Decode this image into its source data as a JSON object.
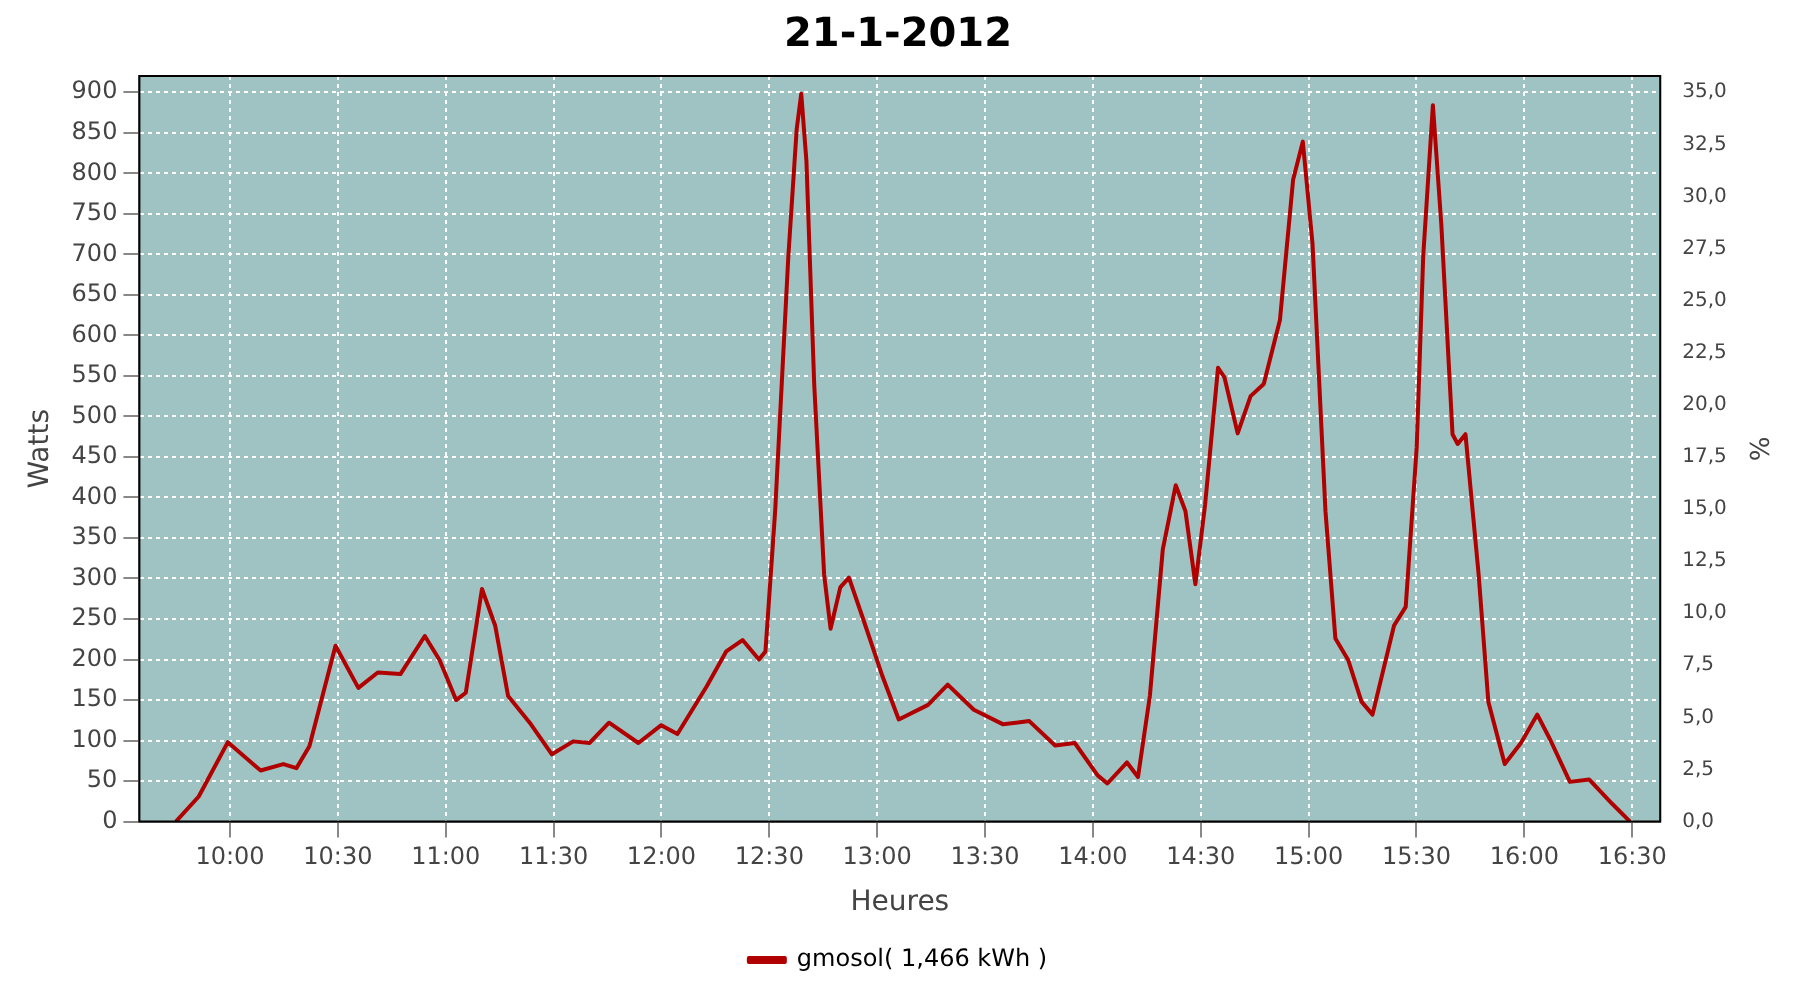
{
  "chart_data": {
    "type": "line",
    "title": "21-1-2012",
    "xlabel": "Heures",
    "ylabel": "Watts",
    "y2label": "%",
    "x": [
      9.749,
      9.855,
      9.99,
      10.142,
      10.247,
      10.308,
      10.368,
      10.489,
      10.595,
      10.685,
      10.79,
      10.903,
      10.972,
      11.048,
      11.093,
      11.168,
      11.229,
      11.289,
      11.395,
      11.492,
      11.591,
      11.667,
      11.757,
      11.893,
      11.999,
      12.074,
      12.21,
      12.3,
      12.376,
      12.452,
      12.482,
      12.527,
      12.588,
      12.627,
      12.648,
      12.672,
      12.708,
      12.754,
      12.784,
      12.829,
      12.869,
      12.935,
      13.025,
      13.1,
      13.236,
      13.327,
      13.448,
      13.584,
      13.705,
      13.825,
      13.916,
      14.022,
      14.067,
      14.158,
      14.209,
      14.264,
      14.324,
      14.384,
      14.429,
      14.475,
      14.52,
      14.58,
      14.61,
      14.671,
      14.731,
      14.792,
      14.867,
      14.928,
      14.973,
      15.018,
      15.078,
      15.124,
      15.184,
      15.245,
      15.296,
      15.396,
      15.45,
      15.501,
      15.531,
      15.576,
      15.615,
      15.667,
      15.691,
      15.727,
      15.788,
      15.833,
      15.909,
      15.984,
      16.06,
      16.12,
      16.211,
      16.3,
      16.407,
      16.49
    ],
    "series": [
      {
        "name": "gmosol( 1,466 kWh )",
        "color": "#b00000",
        "values": [
          0,
          31,
          98,
          63,
          71,
          66,
          93,
          217,
          165,
          184,
          182,
          229,
          199,
          150,
          159,
          287,
          242,
          155,
          120,
          83,
          99,
          97,
          122,
          97,
          119,
          108,
          167,
          210,
          224,
          200,
          210,
          383,
          697,
          855,
          898,
          815,
          540,
          305,
          238,
          289,
          301,
          250,
          179,
          126,
          144,
          169,
          138,
          120,
          124,
          94,
          97,
          57,
          47,
          73,
          55,
          155,
          336,
          415,
          383,
          293,
          391,
          560,
          548,
          479,
          525,
          540,
          619,
          792,
          839,
          713,
          383,
          226,
          199,
          148,
          132,
          242,
          265,
          462,
          697,
          884,
          737,
          478,
          466,
          478,
          305,
          148,
          71,
          97,
          132,
          101,
          49,
          52,
          22,
          0
        ]
      }
    ],
    "xlim": [
      9.58,
      16.63
    ],
    "xticks": [
      {
        "value": 10,
        "label": "10:00"
      },
      {
        "value": 10.5,
        "label": "10:30"
      },
      {
        "value": 11,
        "label": "11:00"
      },
      {
        "value": 11.5,
        "label": "11:30"
      },
      {
        "value": 12,
        "label": "12:00"
      },
      {
        "value": 12.5,
        "label": "12:30"
      },
      {
        "value": 13,
        "label": "13:00"
      },
      {
        "value": 13.5,
        "label": "13:30"
      },
      {
        "value": 14,
        "label": "14:00"
      },
      {
        "value": 14.5,
        "label": "14:30"
      },
      {
        "value": 15,
        "label": "15:00"
      },
      {
        "value": 15.5,
        "label": "15:30"
      },
      {
        "value": 16,
        "label": "16:00"
      },
      {
        "value": 16.5,
        "label": "16:30"
      }
    ],
    "ylim": [
      0,
      920
    ],
    "yticks": [
      0,
      50,
      100,
      150,
      200,
      250,
      300,
      350,
      400,
      450,
      500,
      550,
      600,
      650,
      700,
      750,
      800,
      850,
      900
    ],
    "y2lim": [
      0,
      35.78
    ],
    "y2ticks": [
      {
        "value": 0,
        "label": "0,0"
      },
      {
        "value": 2.5,
        "label": "2,5"
      },
      {
        "value": 5,
        "label": "5,0"
      },
      {
        "value": 7.5,
        "label": "7,5"
      },
      {
        "value": 10,
        "label": "10,0"
      },
      {
        "value": 12.5,
        "label": "12,5"
      },
      {
        "value": 15,
        "label": "15,0"
      },
      {
        "value": 17.5,
        "label": "17,5"
      },
      {
        "value": 20,
        "label": "20,0"
      },
      {
        "value": 22.5,
        "label": "22,5"
      },
      {
        "value": 25,
        "label": "25,0"
      },
      {
        "value": 27.5,
        "label": "27,5"
      },
      {
        "value": 30,
        "label": "30,0"
      },
      {
        "value": 32.5,
        "label": "32,5"
      },
      {
        "value": 35,
        "label": "35,0"
      }
    ],
    "grid": true,
    "legend": "bottom",
    "marker": "none",
    "line_style": "solid"
  }
}
